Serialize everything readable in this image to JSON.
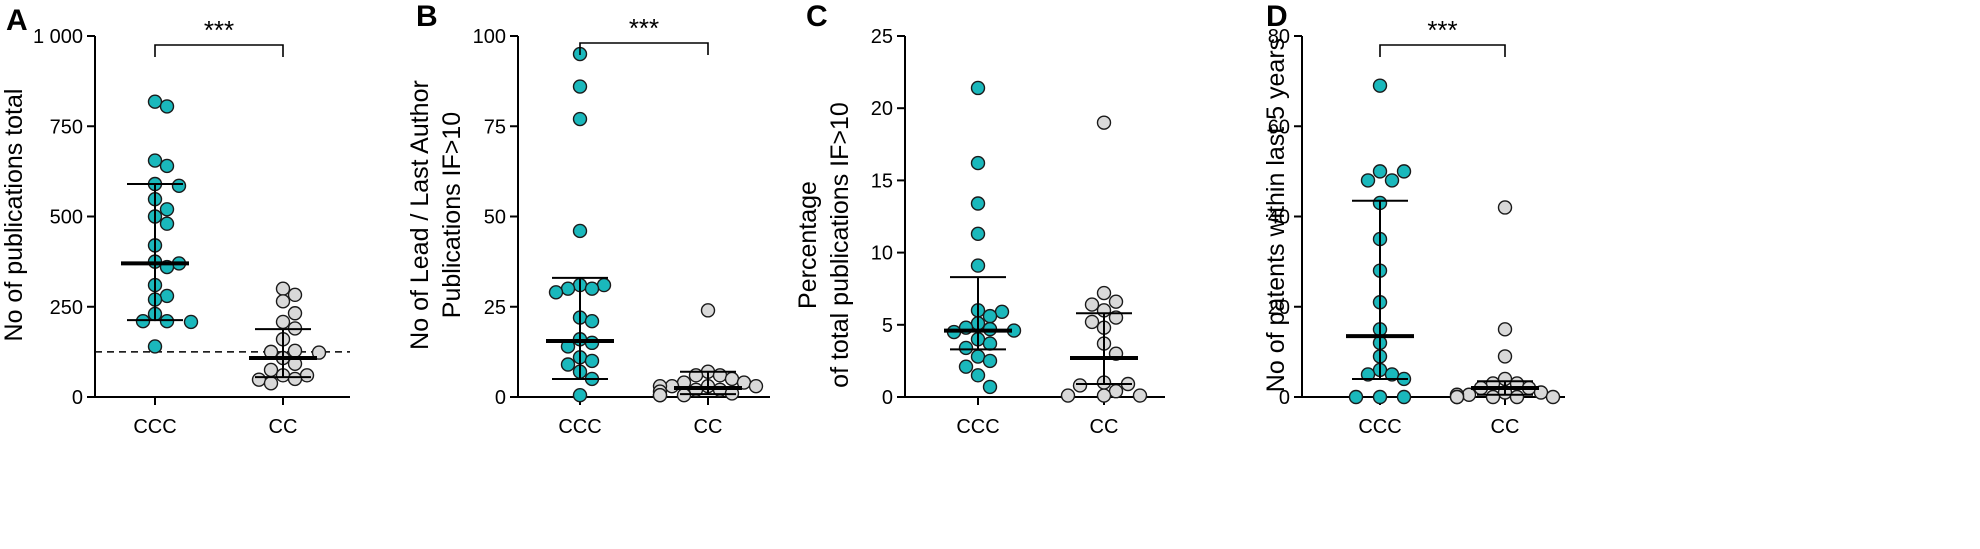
{
  "colors": {
    "group1": "#1ab8bc",
    "group2": "#d9d9d9",
    "stroke": "#1a1a1a"
  },
  "chart_data": [
    {
      "type": "scatter",
      "panel": "A",
      "ylabel_lines": [
        "No of  publications total"
      ],
      "categories": [
        "CCC",
        "CC"
      ],
      "ylim": [
        0,
        1000
      ],
      "yticks": [
        0,
        250,
        500,
        750,
        1000
      ],
      "ytick_labels": [
        "0",
        "250",
        "500",
        "750",
        "1 000"
      ],
      "significance": "***",
      "reference_line": 125,
      "series": [
        {
          "name": "CCC",
          "median": 370,
          "q1": 213,
          "q3": 590,
          "values": [
            818,
            805,
            655,
            640,
            590,
            585,
            548,
            520,
            500,
            480,
            420,
            375,
            370,
            360,
            310,
            280,
            270,
            230,
            210,
            208,
            210,
            140
          ]
        },
        {
          "name": "CC",
          "median": 108,
          "q1": 55,
          "q3": 188,
          "values": [
            300,
            283,
            265,
            232,
            208,
            190,
            160,
            128,
            125,
            123,
            108,
            92,
            75,
            60,
            50,
            48,
            38,
            60
          ]
        }
      ]
    },
    {
      "type": "scatter",
      "panel": "B",
      "ylabel_lines": [
        "No of Lead / Last Author",
        "Publications IF>10"
      ],
      "categories": [
        "CCC",
        "CC"
      ],
      "ylim": [
        0,
        100
      ],
      "yticks": [
        0,
        25,
        50,
        75,
        100
      ],
      "ytick_labels": [
        "0",
        "25",
        "50",
        "75",
        "100"
      ],
      "significance": "***",
      "series": [
        {
          "name": "CCC",
          "median": 15.5,
          "q1": 5,
          "q3": 33,
          "values": [
            95,
            86,
            77,
            46,
            31,
            31,
            30,
            30,
            29,
            22,
            21,
            16,
            15,
            14,
            11,
            10,
            9,
            7,
            5,
            0.5
          ]
        },
        {
          "name": "CC",
          "median": 2.5,
          "q1": 0.8,
          "q3": 7,
          "values": [
            24,
            7,
            6,
            6,
            5,
            4,
            4,
            3,
            3,
            3,
            3,
            2,
            2,
            1.5,
            1,
            0.5,
            0.5,
            0.5
          ]
        }
      ]
    },
    {
      "type": "scatter",
      "panel": "C",
      "ylabel_lines": [
        "Percentage",
        "of  total publications IF>10"
      ],
      "categories": [
        "CCC",
        "CC"
      ],
      "ylim": [
        0,
        25
      ],
      "yticks": [
        0,
        5,
        10,
        15,
        20,
        25
      ],
      "ytick_labels": [
        "0",
        "5",
        "10",
        "15",
        "20",
        "25"
      ],
      "significance": "",
      "series": [
        {
          "name": "CCC",
          "median": 4.6,
          "q1": 3.3,
          "q3": 8.3,
          "values": [
            21.4,
            16.2,
            13.4,
            11.3,
            9.1,
            6.0,
            5.9,
            5.6,
            5.1,
            4.8,
            4.7,
            4.6,
            4.5,
            4.0,
            3.7,
            3.4,
            2.8,
            2.5,
            2.1,
            1.5,
            0.7
          ]
        },
        {
          "name": "CC",
          "median": 2.7,
          "q1": 0.9,
          "q3": 5.8,
          "values": [
            19.0,
            7.2,
            6.6,
            6.4,
            6.0,
            5.5,
            5.2,
            4.8,
            3.7,
            3.0,
            1.0,
            0.9,
            0.8,
            0.4,
            0.1,
            0.1,
            0.1
          ]
        }
      ]
    },
    {
      "type": "scatter",
      "panel": "D",
      "ylabel_lines": [
        "No of patents within last 5 years"
      ],
      "categories": [
        "CCC",
        "CC"
      ],
      "ylim": [
        0,
        80
      ],
      "yticks": [
        0,
        20,
        40,
        60,
        80
      ],
      "ytick_labels": [
        "0",
        "20",
        "40",
        "60",
        "80"
      ],
      "significance": "***",
      "series": [
        {
          "name": "CCC",
          "median": 13.5,
          "q1": 4,
          "q3": 43.5,
          "values": [
            69,
            50,
            50,
            48,
            48,
            43,
            35,
            28,
            21,
            15,
            12,
            9,
            6,
            5,
            5,
            4,
            0,
            0,
            0
          ]
        },
        {
          "name": "CC",
          "median": 2,
          "q1": 0.5,
          "q3": 3.5,
          "values": [
            42,
            15,
            9,
            4,
            3,
            3,
            2,
            2,
            1,
            1,
            0.5,
            0.5,
            0,
            0,
            0,
            0,
            0
          ]
        }
      ]
    }
  ]
}
